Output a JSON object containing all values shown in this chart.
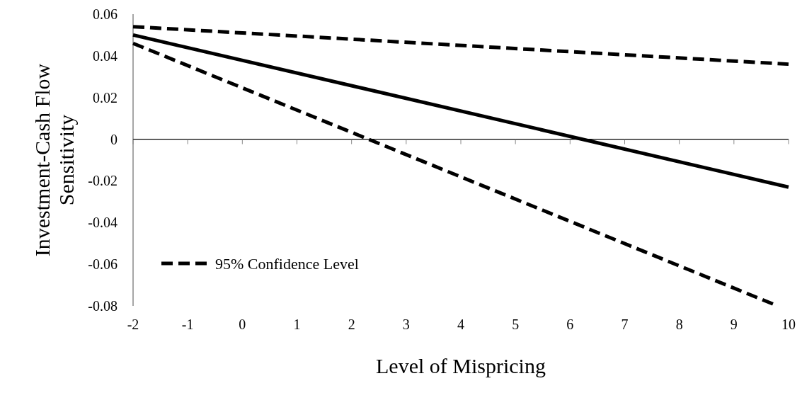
{
  "chart_data": {
    "type": "line",
    "xlabel": "Level of Mispricing",
    "ylabel": "Investment-Cash Flow Sensitivity",
    "xlim": [
      -2,
      10
    ],
    "xticks": [
      -2,
      -1,
      0,
      1,
      2,
      3,
      4,
      5,
      6,
      7,
      8,
      9,
      10
    ],
    "ylim": [
      -0.08,
      0.06
    ],
    "yticks": [
      {
        "value": 0.06,
        "label": "0.06"
      },
      {
        "value": 0.04,
        "label": "0.04"
      },
      {
        "value": 0.02,
        "label": "0.02"
      },
      {
        "value": 0,
        "label": "0"
      },
      {
        "value": -0.02,
        "label": "-0.02"
      },
      {
        "value": -0.04,
        "label": "-0.04"
      },
      {
        "value": -0.06,
        "label": "-0.06"
      },
      {
        "value": -0.08,
        "label": "-0.08"
      }
    ],
    "legend": "bottom left",
    "series": [
      {
        "name": "95% Confidence Level",
        "color": "#000000",
        "line_style": "dashed",
        "x": [
          -2,
          10
        ],
        "values": [
          0.054,
          0.036
        ]
      },
      {
        "color": "#000000",
        "line_style": "solid",
        "x": [
          -2,
          10
        ],
        "values": [
          0.05,
          -0.023
        ]
      },
      {
        "color": "#000000",
        "line_style": "dashed",
        "x": [
          -2,
          9.8
        ],
        "values": [
          0.046,
          -0.08
        ]
      }
    ]
  }
}
